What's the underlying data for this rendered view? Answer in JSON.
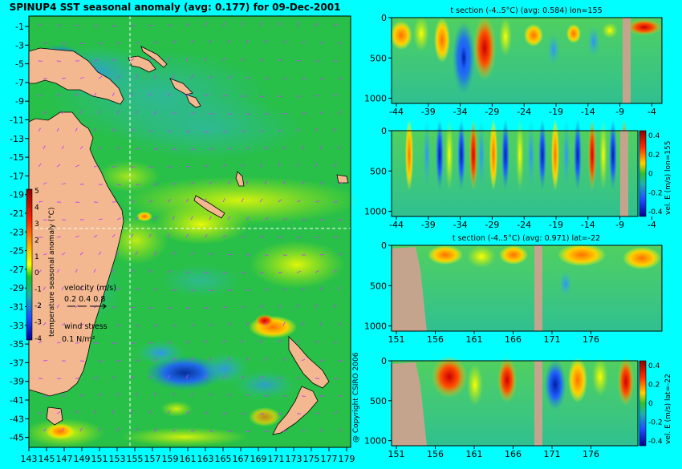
{
  "map": {
    "title": "SPINUP4 SST seasonal anomaly (avg: 0.177) for 09-Dec-2001",
    "y_ticks": [
      "-1",
      "-3",
      "-5",
      "-7",
      "-9",
      "-11",
      "-13",
      "-15",
      "-17",
      "-19",
      "-21",
      "-23",
      "-25",
      "-27",
      "-29",
      "-31",
      "-33",
      "-35",
      "-37",
      "-39",
      "-41",
      "-43",
      "-45"
    ],
    "x_ticks": [
      "143",
      "145",
      "147",
      "149",
      "151",
      "153",
      "155",
      "157",
      "159",
      "161",
      "163",
      "165",
      "167",
      "169",
      "171",
      "173",
      "175",
      "177",
      "179"
    ],
    "colorbar_ticks": [
      "5",
      "4",
      "3",
      "2",
      "1",
      "0",
      "-1",
      "-2",
      "-3",
      "-4"
    ],
    "colorbar_label": "temperature seasonal anomaly (°C)",
    "velocity_label": "velocity (m/s)",
    "velocity_scale": "0.2 0.4 0.8",
    "wind_label": "wind stress",
    "wind_scale": "0.1 N/m²",
    "colors": {
      "background": "#00ffff",
      "land": "#f4b890",
      "section_land": "#c4a48c"
    }
  },
  "copyright": "@ Copyright CSIRO 2006",
  "sections": [
    {
      "title": "t section (-4..5°C) (avg: 0.584) lon=155",
      "x_ticks": [
        "-44",
        "-39",
        "-34",
        "-29",
        "-24",
        "-19",
        "-14",
        "-9",
        "-4"
      ],
      "y_ticks": [
        "0",
        "500",
        "1000"
      ]
    },
    {
      "title": "",
      "x_ticks": [
        "-44",
        "-39",
        "-34",
        "-29",
        "-24",
        "-19",
        "-14",
        "-9",
        "-4"
      ],
      "y_ticks": [
        "0",
        "500",
        "1000"
      ],
      "colorbar_ticks": [
        "0.4",
        "0.2",
        "0",
        "-0.2",
        "-0.4"
      ],
      "colorbar_label": "vel. E (m/s) lon=155"
    },
    {
      "title": "t section (-4..5°C) (avg: 0.971) lat=-22",
      "x_ticks": [
        "151",
        "156",
        "161",
        "166",
        "171",
        "176"
      ],
      "y_ticks": [
        "0",
        "500",
        "1000"
      ]
    },
    {
      "title": "",
      "x_ticks": [
        "151",
        "156",
        "161",
        "166",
        "171",
        "176"
      ],
      "y_ticks": [
        "0",
        "500",
        "1000"
      ],
      "colorbar_ticks": [
        "0.4",
        "0.2",
        "0",
        "-0.2",
        "-0.4"
      ],
      "colorbar_label": "vel. E (m/s) lat=-22"
    }
  ],
  "chart_data": [
    {
      "type": "heatmap",
      "title": "SPINUP4 SST seasonal anomaly (avg: 0.177) for 09-Dec-2001",
      "x": [
        143,
        179
      ],
      "y": [
        -1,
        -45
      ],
      "units": "°C",
      "color_range": [
        -4,
        5
      ],
      "average": 0.177,
      "date": "09-Dec-2001"
    },
    {
      "type": "heatmap",
      "title": "t section (-4..5°C) (avg: 0.584) lon=155",
      "x": [
        -44,
        -4
      ],
      "y": [
        0,
        1000
      ],
      "color_range": [
        -4,
        5
      ],
      "average": 0.584
    },
    {
      "type": "heatmap",
      "title": "vel. E (m/s) lon=155",
      "x": [
        -44,
        -4
      ],
      "y": [
        0,
        1000
      ],
      "color_range": [
        -0.4,
        0.4
      ]
    },
    {
      "type": "heatmap",
      "title": "t section (-4..5°C) (avg: 0.971) lat=-22",
      "x": [
        151,
        176
      ],
      "y": [
        0,
        1000
      ],
      "color_range": [
        -4,
        5
      ],
      "average": 0.971
    },
    {
      "type": "heatmap",
      "title": "vel. E (m/s) lat=-22",
      "x": [
        151,
        176
      ],
      "y": [
        0,
        1000
      ],
      "color_range": [
        -0.4,
        0.4
      ]
    }
  ]
}
